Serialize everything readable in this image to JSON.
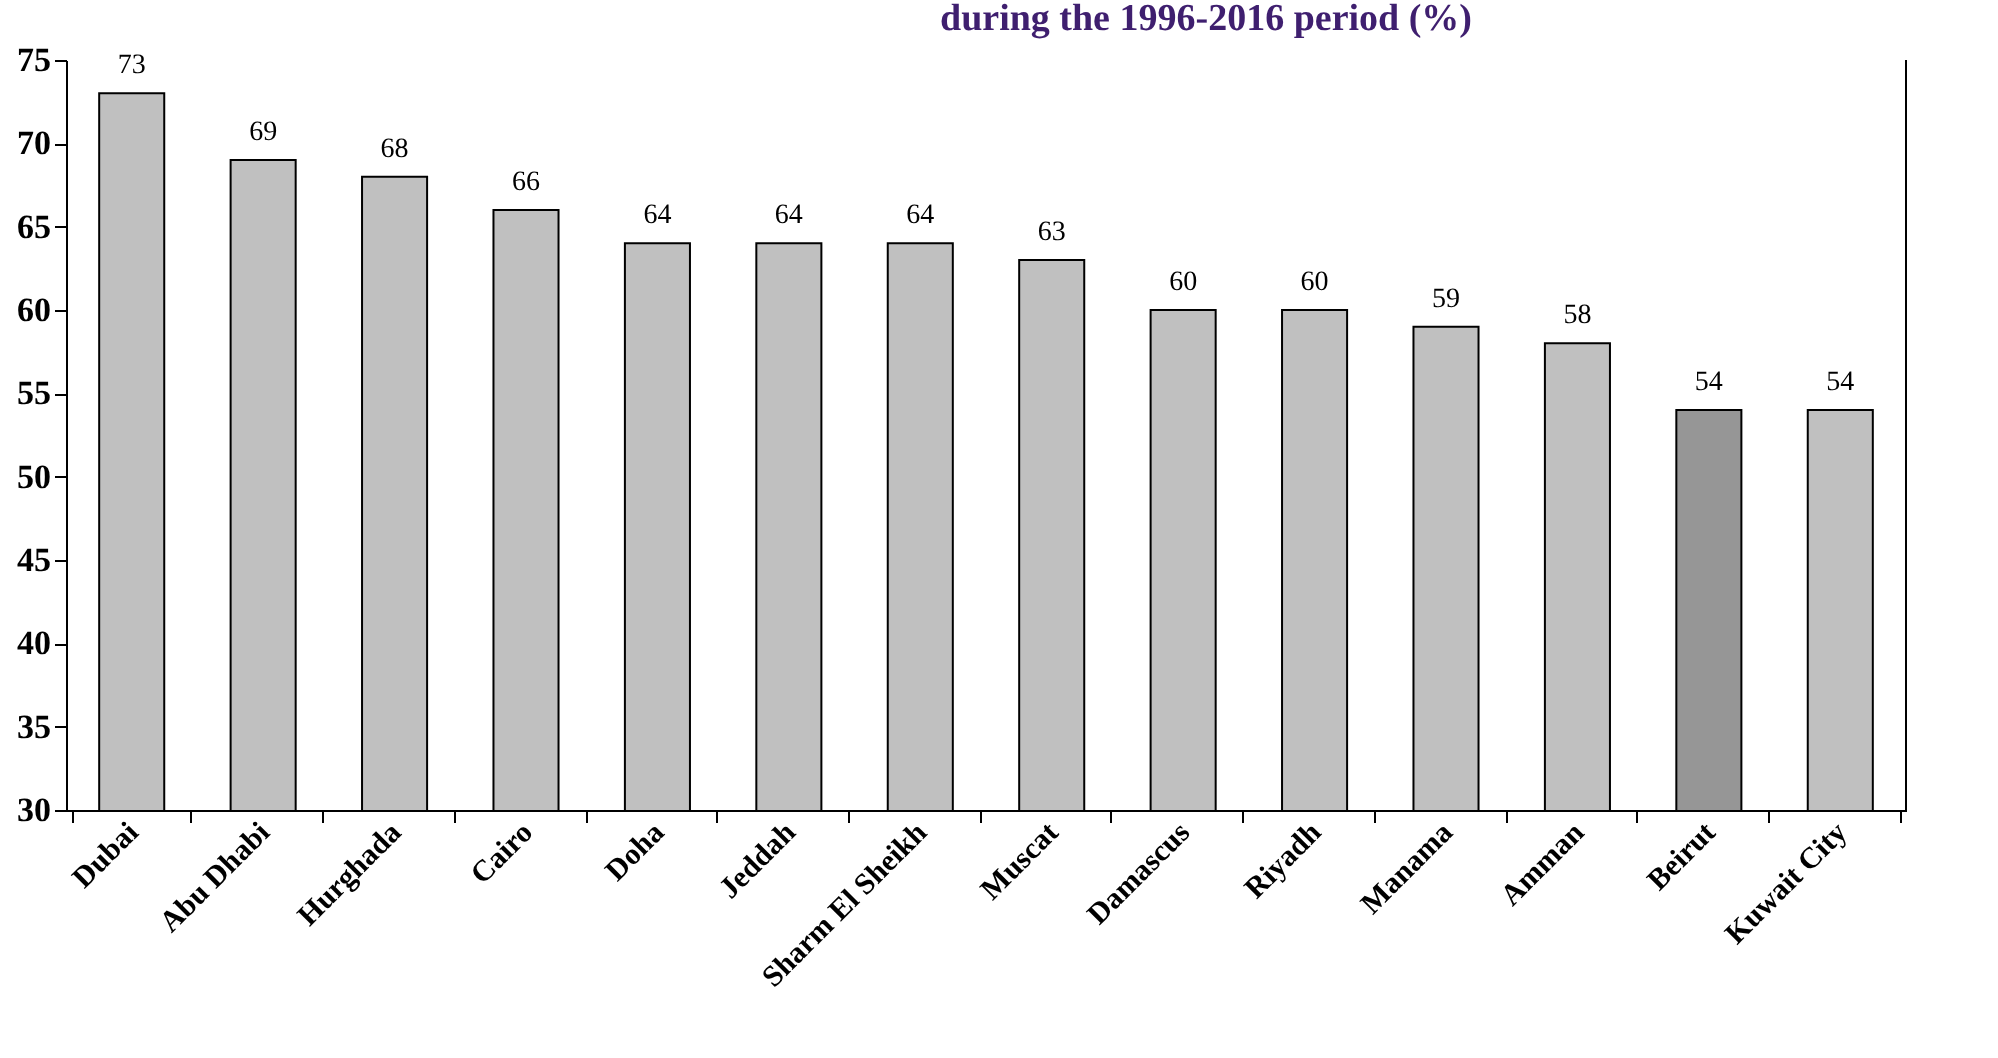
{
  "chart_data": {
    "type": "bar",
    "title": "during the 1996-2016 period (%)",
    "categories": [
      "Dubai",
      "Abu Dhabi",
      "Hurghada",
      "Cairo",
      "Doha",
      "Jeddah",
      "Sharm El Sheikh",
      "Muscat",
      "Damascus",
      "Riyadh",
      "Manama",
      "Amman",
      "Beirut",
      "Kuwait City"
    ],
    "values": [
      73,
      69,
      68,
      66,
      64,
      64,
      64,
      63,
      60,
      60,
      59,
      58,
      54,
      54
    ],
    "colors": [
      "#c0c0c0",
      "#c0c0c0",
      "#c0c0c0",
      "#c0c0c0",
      "#c0c0c0",
      "#c0c0c0",
      "#c0c0c0",
      "#c0c0c0",
      "#c0c0c0",
      "#c0c0c0",
      "#c0c0c0",
      "#c0c0c0",
      "#969696",
      "#c0c0c0"
    ],
    "ylim": [
      30,
      75
    ],
    "yticks": [
      30,
      35,
      40,
      45,
      50,
      55,
      60,
      65,
      70,
      75
    ],
    "grid": false,
    "data_labels": true
  }
}
